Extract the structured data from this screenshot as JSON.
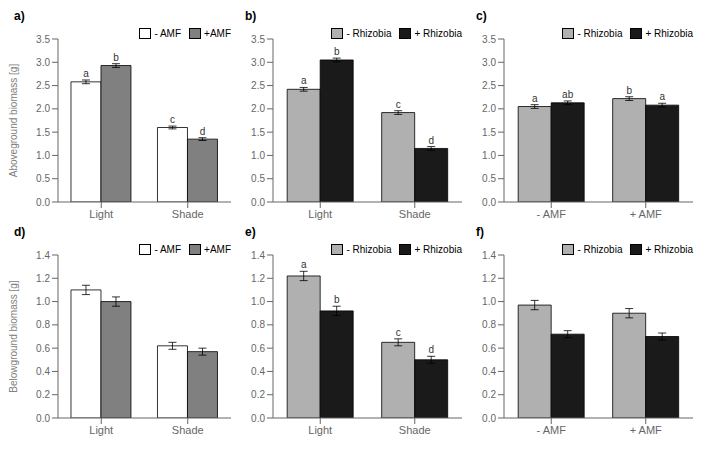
{
  "chart_data": [
    {
      "type": "bar",
      "title": "a)",
      "ylabel": "Aboveground biomass [g]",
      "categories": [
        "Light",
        "Shade"
      ],
      "series": [
        {
          "name": "- AMF",
          "color": "white",
          "values": [
            2.58,
            1.6
          ],
          "errors": [
            0.04,
            0.03
          ],
          "annotations": [
            "a",
            "c"
          ]
        },
        {
          "name": "+AMF",
          "color": "#808080",
          "values": [
            2.93,
            1.35
          ],
          "errors": [
            0.04,
            0.03
          ],
          "annotations": [
            "b",
            "d"
          ]
        }
      ],
      "ylim": [
        0,
        3.5
      ],
      "yticks": [
        {
          "value": 0,
          "label": "0.0"
        },
        0.5,
        {
          "value": 1,
          "label": "1.0"
        },
        1.5,
        {
          "value": 2,
          "label": "2.0"
        },
        2.5,
        {
          "value": 3,
          "label": "3.0"
        },
        3.5
      ],
      "legend": "upper right",
      "grid": false
    },
    {
      "type": "bar",
      "title": "b)",
      "categories": [
        "Light",
        "Shade"
      ],
      "series": [
        {
          "name": "- Rhizobia",
          "color": "#b0b0b0",
          "values": [
            2.42,
            1.92
          ],
          "errors": [
            0.04,
            0.04
          ],
          "annotations": [
            "a",
            "c"
          ]
        },
        {
          "name": "+ Rhizobia",
          "color": "#1a1a1a",
          "values": [
            3.05,
            1.15
          ],
          "errors": [
            0.04,
            0.04
          ],
          "annotations": [
            "b",
            "d"
          ]
        }
      ],
      "ylim": [
        0,
        3.5
      ],
      "yticks": [
        {
          "value": 0,
          "label": "0.0"
        },
        0.5,
        {
          "value": 1,
          "label": "1.0"
        },
        1.5,
        {
          "value": 2,
          "label": "2.0"
        },
        2.5,
        {
          "value": 3,
          "label": "3.0"
        },
        3.5
      ],
      "legend": "upper right",
      "grid": false
    },
    {
      "type": "bar",
      "title": "c)",
      "categories": [
        "- AMF",
        "+ AMF"
      ],
      "series": [
        {
          "name": "- Rhizobia",
          "color": "#b0b0b0",
          "values": [
            2.05,
            2.22
          ],
          "errors": [
            0.04,
            0.04
          ],
          "annotations": [
            "a",
            "b"
          ]
        },
        {
          "name": "+ Rhizobia",
          "color": "#1a1a1a",
          "values": [
            2.13,
            2.08
          ],
          "errors": [
            0.04,
            0.04
          ],
          "annotations": [
            "ab",
            "a"
          ]
        }
      ],
      "ylim": [
        0,
        3.5
      ],
      "yticks": [
        {
          "value": 0,
          "label": "0.0"
        },
        0.5,
        {
          "value": 1,
          "label": "1.0"
        },
        1.5,
        {
          "value": 2,
          "label": "2.0"
        },
        2.5,
        {
          "value": 3,
          "label": "3.0"
        },
        3.5
      ],
      "legend": "upper right",
      "grid": false
    },
    {
      "type": "bar",
      "title": "d)",
      "ylabel": "Belowground biomass [g]",
      "categories": [
        "Light",
        "Shade"
      ],
      "series": [
        {
          "name": "- AMF",
          "color": "white",
          "values": [
            1.1,
            0.62
          ],
          "errors": [
            0.04,
            0.03
          ]
        },
        {
          "name": "+AMF",
          "color": "#808080",
          "values": [
            1.0,
            0.57
          ],
          "errors": [
            0.04,
            0.03
          ]
        }
      ],
      "ylim": [
        0,
        1.4
      ],
      "yticks": [
        {
          "value": 0,
          "label": "0.0"
        },
        0.2,
        0.4,
        0.6,
        0.8,
        {
          "value": 1,
          "label": "1.0"
        },
        1.2,
        1.4
      ],
      "legend": "upper right",
      "grid": false
    },
    {
      "type": "bar",
      "title": "e)",
      "categories": [
        "Light",
        "Shade"
      ],
      "series": [
        {
          "name": "- Rhizobia",
          "color": "#b0b0b0",
          "values": [
            1.22,
            0.65
          ],
          "errors": [
            0.04,
            0.03
          ],
          "annotations": [
            "a",
            "c"
          ]
        },
        {
          "name": "+ Rhizobia",
          "color": "#1a1a1a",
          "values": [
            0.92,
            0.5
          ],
          "errors": [
            0.04,
            0.03
          ],
          "annotations": [
            "b",
            "d"
          ]
        }
      ],
      "ylim": [
        0,
        1.4
      ],
      "yticks": [
        {
          "value": 0,
          "label": "0.0"
        },
        0.2,
        0.4,
        0.6,
        0.8,
        {
          "value": 1,
          "label": "1.0"
        },
        1.2,
        1.4
      ],
      "legend": "upper right",
      "grid": false
    },
    {
      "type": "bar",
      "title": "f)",
      "categories": [
        "- AMF",
        "+ AMF"
      ],
      "series": [
        {
          "name": "- Rhizobia",
          "color": "#b0b0b0",
          "values": [
            0.97,
            0.9
          ],
          "errors": [
            0.04,
            0.04
          ]
        },
        {
          "name": "+ Rhizobia",
          "color": "#1a1a1a",
          "values": [
            0.72,
            0.7
          ],
          "errors": [
            0.03,
            0.03
          ]
        }
      ],
      "ylim": [
        0,
        1.4
      ],
      "yticks": [
        {
          "value": 0,
          "label": "0.0"
        },
        0.2,
        0.4,
        0.6,
        0.8,
        {
          "value": 1,
          "label": "1.0"
        },
        1.2,
        1.4
      ],
      "legend": "upper right",
      "grid": false
    }
  ]
}
